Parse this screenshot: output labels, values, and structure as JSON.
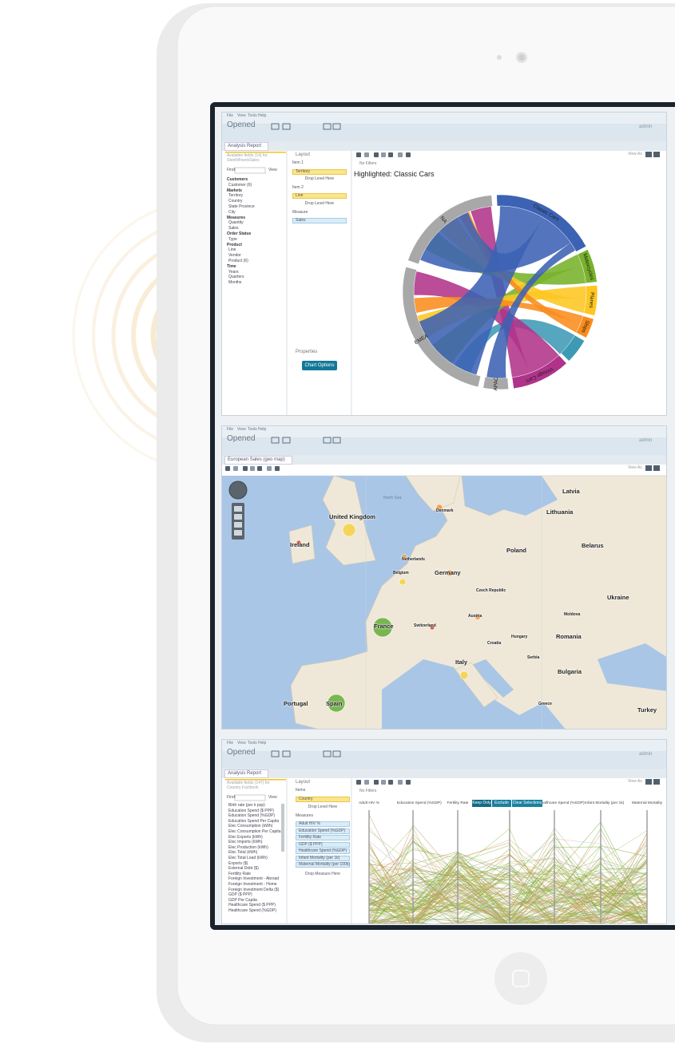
{
  "panels": [
    {
      "menu": [
        "File",
        "View",
        "Tools",
        "Help"
      ],
      "opened": "Opened",
      "user": "admin",
      "tab": "Analysis Report",
      "fields_title": "Available fields (14) for SteelWheelsSales",
      "find": "Find:",
      "view": "View",
      "fields": [
        "Customers",
        "Customer (6)",
        "Markets",
        "Territory",
        "Country",
        "State Province",
        "City",
        "Measures",
        "Quantity",
        "Sales",
        "Order Status",
        "Type",
        "Product",
        "Line",
        "Vendor",
        "Product (6)",
        "Time",
        "Years",
        "Quarters",
        "Months"
      ],
      "layout_title": "Layout",
      "layout": [
        "Item 1",
        "Territory",
        "Drop Level Here",
        "Item 2",
        "Line",
        "Drop Level Here",
        "Measure",
        "Sales"
      ],
      "properties": "Properties",
      "button": "Chart Options",
      "filters": "No Filters",
      "view_as": "View As",
      "chart_title": "Highlighted: Classic Cars",
      "segments": [
        "Classic Cars",
        "Motorcycles",
        "Planes",
        "Ships",
        "Vintage Cars",
        "APAC",
        "EMEA",
        "NA"
      ]
    },
    {
      "menu": [
        "File",
        "View",
        "Tools",
        "Help"
      ],
      "opened": "Opened",
      "user": "admin",
      "tab": "European Sales (geo map)",
      "view_as": "View As",
      "sea": [
        "North Sea"
      ],
      "places": [
        "United Kingdom",
        "Ireland",
        "France",
        "Spain",
        "Portugal",
        "Germany",
        "Poland",
        "Italy",
        "Romania",
        "Ukraine",
        "Belarus",
        "Lithuania",
        "Latvia",
        "Turkey",
        "Bulgaria",
        "Denmark",
        "Netherlands",
        "Belgium",
        "Switzerland",
        "Austria",
        "Hungary",
        "Greece",
        "Serbia",
        "Croatia",
        "Moldova",
        "Czech Republic"
      ]
    },
    {
      "menu": [
        "File",
        "View",
        "Tools",
        "Help"
      ],
      "opened": "Opened",
      "user": "admin",
      "tab": "Analysis Report",
      "fields_title": "Available fields (147) for Country Factbook",
      "find": "Find:",
      "view": "View",
      "fields": [
        "Birth rate (per k pop)",
        "Education Spend ($ PPP)",
        "Education Spend (%GDP)",
        "Education Spend Per Capita",
        "Elec Consumption (kWh)",
        "Elec Consumption Per Capita",
        "Elec Exports (kWh)",
        "Elec Imports (kWh)",
        "Elec Production (kWh)",
        "Elec Total (kWh)",
        "Elec Total Load (kWh)",
        "Exports ($)",
        "External Debt ($)",
        "Fertility Rate",
        "Foreign Investment - Abroad",
        "Foreign Investment - Home",
        "Foreign Investment Delta ($)",
        "GDP ($ PPP)",
        "GDP Per Capita",
        "Healthcare Spend ($ PPP)",
        "Healthcare Spend (%GDP)"
      ],
      "layout_title": "Layout",
      "items_label": "Items",
      "items": [
        "Country",
        "Drop Level Here"
      ],
      "measures_label": "Measures",
      "measures": [
        "Adult HIV %",
        "Education Spend (%GDP)",
        "Fertility Rate",
        "GDP ($ PPP)",
        "Healthcare Spend (%GDP)",
        "Infant Mortality (per 1k)",
        "Maternal Mortality (per 100k)"
      ],
      "drop_measure": "Drop Measure Here",
      "filters": "No Filters",
      "view_as": "View As",
      "axes": [
        "Adult HIV %",
        "Education Spend (%GDP)",
        "Fertility Rate",
        "Healthcare Spend (%GDP)",
        "Infant Mortality (per 1k)",
        "Maternal Mortality"
      ],
      "buttons": [
        "Keep Only",
        "Exclude",
        "Clear Selections"
      ]
    }
  ]
}
